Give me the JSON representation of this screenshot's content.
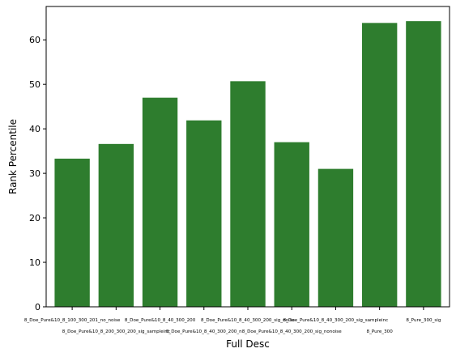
{
  "chart_data": {
    "type": "bar",
    "title": "",
    "xlabel": "Full Desc",
    "ylabel": "Rank Percentile",
    "ylim": [
      0,
      67.5
    ],
    "yticks": [
      0,
      10,
      20,
      30,
      40,
      50,
      60
    ],
    "grid": false,
    "bar_color": "#2e7d2e",
    "categories": [
      "8_Doe_Pure&10_8_100_300_201_no_noise",
      "8_Doe_Pure&10_8_200_300_200_sig_sampleinc",
      "8_Doe_Pure&10_8_40_300_200",
      "8_Doe_Pure&10_8_40_300_200_n",
      "8_Doe_Pure&10_8_40_300_200_sig_noise",
      "8_Doe_Pure&10_8_40_300_200_sig_nonoise",
      "8_Doe_Pure&10_8_40_300_200_sig_sampleinc",
      "8_Pure_300",
      "8_Pure_300_sig"
    ],
    "values": [
      33.3,
      36.6,
      47.0,
      41.9,
      50.7,
      37.0,
      31.0,
      63.8,
      64.2
    ]
  }
}
